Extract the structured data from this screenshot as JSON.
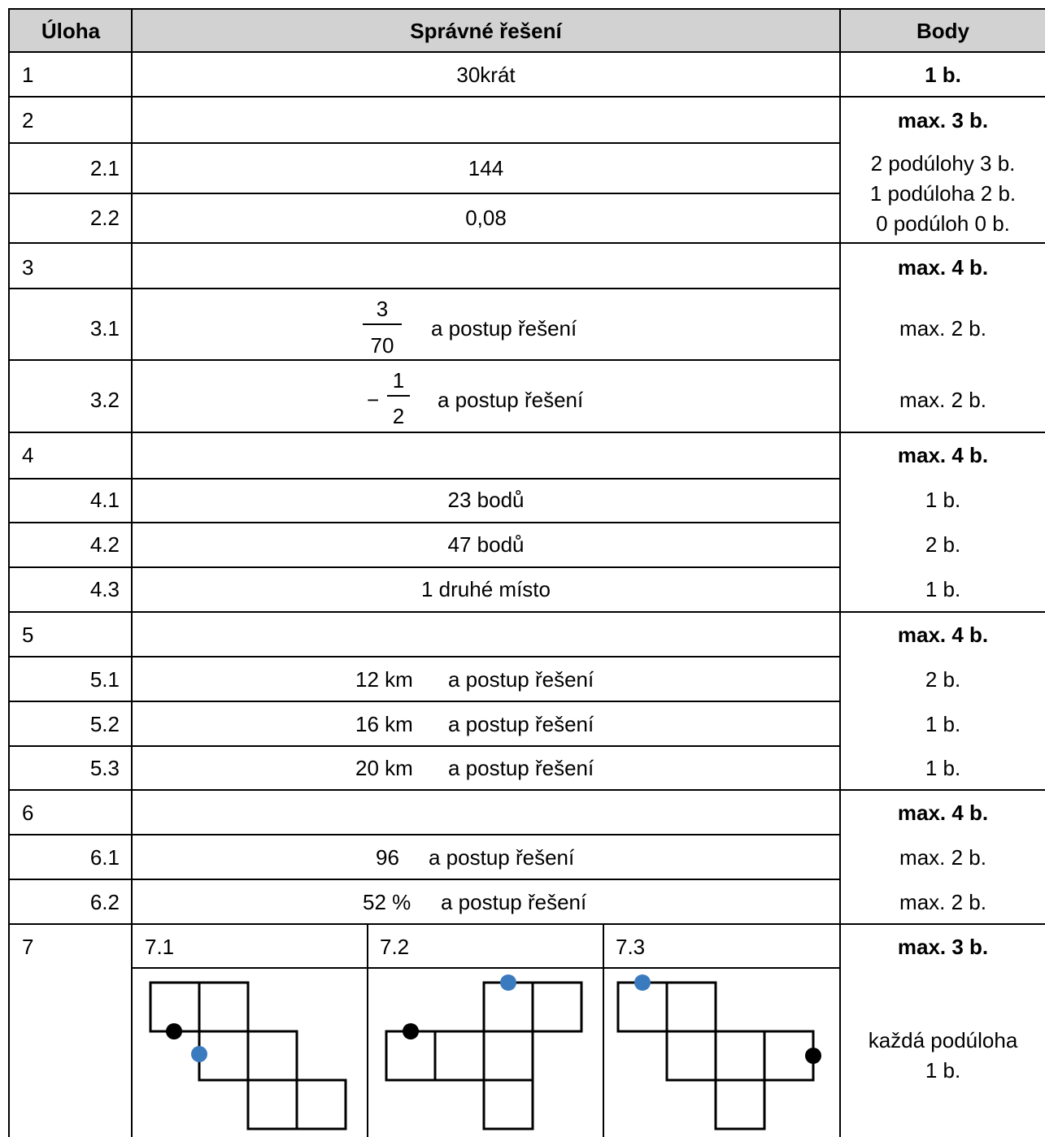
{
  "header": {
    "task": "Úloha",
    "solution": "Správné řešení",
    "points": "Body"
  },
  "rows": {
    "r1": {
      "task": "1",
      "solution": "30krát",
      "points": "1 b."
    },
    "r2": {
      "task": "2",
      "points": "max. 3 b."
    },
    "r2_1": {
      "task": "2.1",
      "solution": "144"
    },
    "r2_2": {
      "task": "2.2",
      "solution": "0,08"
    },
    "r2_points": {
      "line1": "2 podúlohy 3 b.",
      "line2": "1 podúloha 2 b.",
      "line3": "0 podúloh 0 b."
    },
    "r3": {
      "task": "3",
      "points": "max. 4 b."
    },
    "r3_1": {
      "task": "3.1",
      "numerator": "3",
      "denominator": "70",
      "suffix": "a postup řešení",
      "points": "max. 2 b."
    },
    "r3_2": {
      "task": "3.2",
      "sign": "−",
      "numerator": "1",
      "denominator": "2",
      "suffix": "a postup řešení",
      "points": "max. 2 b."
    },
    "r4": {
      "task": "4",
      "points": "max. 4 b."
    },
    "r4_1": {
      "task": "4.1",
      "solution": "23 bodů",
      "points": "1 b."
    },
    "r4_2": {
      "task": "4.2",
      "solution": "47 bodů",
      "points": "2 b."
    },
    "r4_3": {
      "task": "4.3",
      "solution": "1 druhé místo",
      "points": "1 b."
    },
    "r5": {
      "task": "5",
      "points": "max. 4 b."
    },
    "r5_1": {
      "task": "5.1",
      "value": "12 km",
      "suffix": "a postup řešení",
      "points": "2 b."
    },
    "r5_2": {
      "task": "5.2",
      "value": "16 km",
      "suffix": "a postup řešení",
      "points": "1 b."
    },
    "r5_3": {
      "task": "5.3",
      "value": "20 km",
      "suffix": "a postup řešení",
      "points": "1 b."
    },
    "r6": {
      "task": "6",
      "points": "max. 4 b."
    },
    "r6_1": {
      "task": "6.1",
      "value": "96",
      "suffix": "a postup řešení",
      "points": "max. 2 b."
    },
    "r6_2": {
      "task": "6.2",
      "value": "52 %",
      "suffix": "a postup řešení",
      "points": "max. 2 b."
    },
    "r7": {
      "task": "7",
      "sub1": "7.1",
      "sub2": "7.2",
      "sub3": "7.3",
      "points": "max. 3 b."
    },
    "r7_points": {
      "line1": "každá podúloha",
      "line2": "1 b."
    }
  },
  "colors": {
    "header_bg": "#d2d2d2",
    "marker_black": "#000000",
    "marker_blue": "#3a7bbf"
  }
}
